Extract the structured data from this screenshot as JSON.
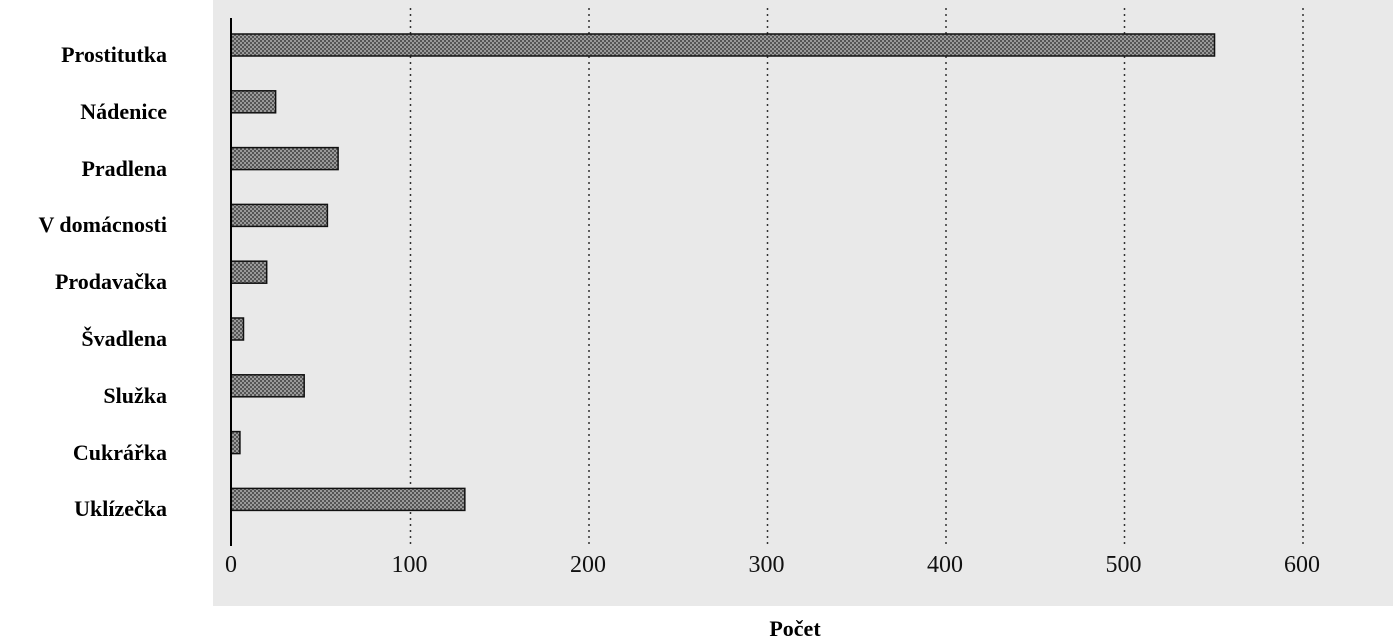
{
  "chart_data": {
    "type": "bar",
    "orientation": "horizontal",
    "categories": [
      "Prostitutka",
      "Nádenice",
      "Pradlena",
      "V domácnosti",
      "Prodavačka",
      "Švadlena",
      "Služka",
      "Cukrářka",
      "Uklízečka"
    ],
    "values": [
      551,
      25,
      60,
      54,
      20,
      7,
      41,
      5,
      131
    ],
    "xlabel": "Počet",
    "ylabel": "",
    "xlim": [
      0,
      600
    ],
    "x_ticks": [
      "0",
      "100",
      "200",
      "300",
      "400",
      "500",
      "600"
    ],
    "x_tick_values": [
      0,
      100,
      200,
      300,
      400,
      500,
      600
    ],
    "grid": "vertical dotted",
    "colors": {
      "bar_fill": "#8a8a8a",
      "bar_stroke": "#111111",
      "plot_background": "#e9e9e9",
      "grid": "#333333"
    }
  }
}
